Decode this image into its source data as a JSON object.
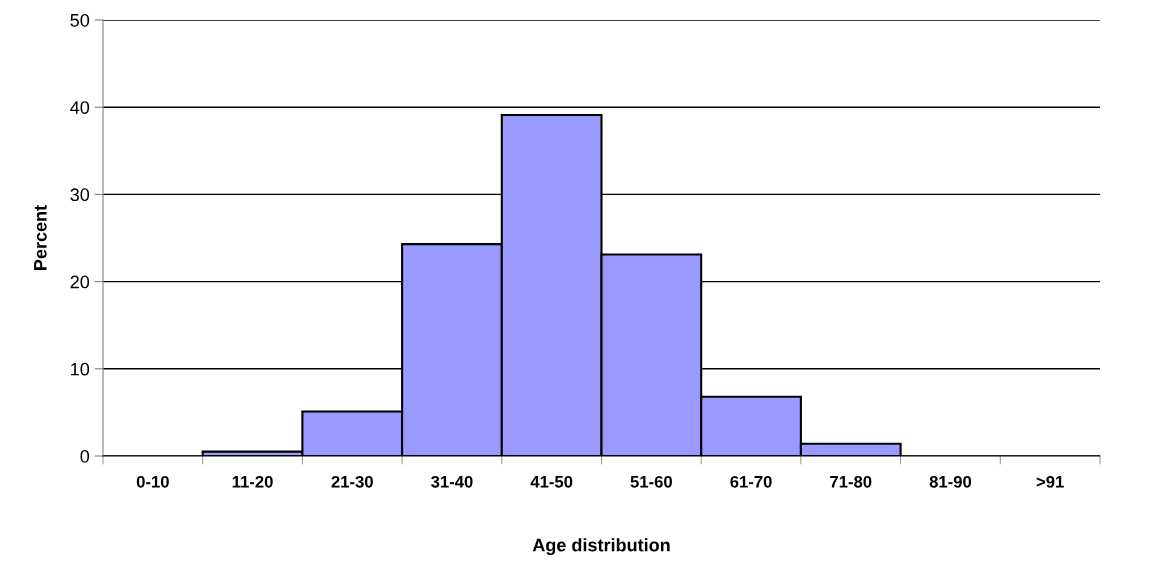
{
  "chart_data": {
    "type": "bar",
    "xlabel": "Age distribution",
    "ylabel": "Percent",
    "categories": [
      "0-10",
      "11-20",
      "21-30",
      "31-40",
      "41-50",
      "51-60",
      "61-70",
      "71-80",
      "81-90",
      ">91"
    ],
    "values": [
      0,
      0.5,
      5.1,
      24.3,
      39.1,
      23.1,
      6.8,
      1.4,
      0,
      0
    ],
    "color": "#9999ff",
    "ylim": [
      0,
      50
    ],
    "yticks": [
      0,
      10,
      20,
      30,
      40,
      50
    ],
    "grid": "y",
    "legend": false
  }
}
